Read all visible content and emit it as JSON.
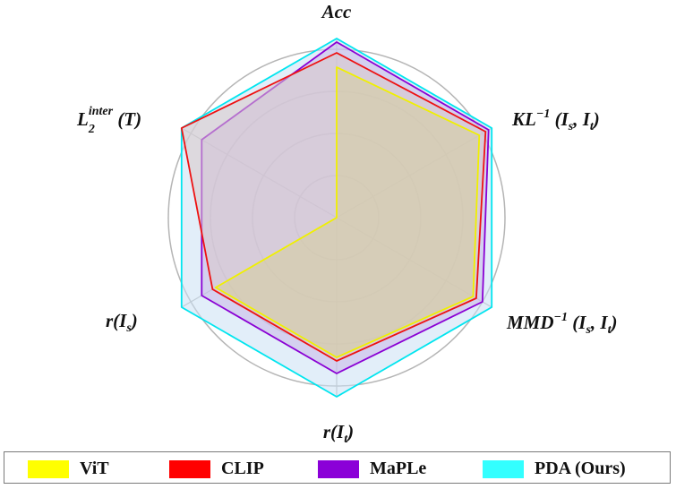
{
  "chart_data": {
    "type": "radar",
    "axes": [
      {
        "label": "Acc"
      },
      {
        "label": "KL⁻¹ (Iₛ, Iₜ)"
      },
      {
        "label": "MMD⁻¹ (Iₛ, Iₜ)"
      },
      {
        "label": "r(Iₜ)"
      },
      {
        "label": "r(Iₛ)"
      },
      {
        "label": "L₂ⁱⁿᵗᵉʳ (T)"
      }
    ],
    "rlim": [
      0,
      1
    ],
    "grid": true,
    "grid_rings": [
      0.25,
      0.5,
      0.75,
      1.0
    ],
    "legend_position": "bottom",
    "series": [
      {
        "name": "PDA (Ours)",
        "color": "#00e5ef",
        "fill": "#cbe0f4",
        "values": [
          1.0,
          1.0,
          1.0,
          1.0,
          1.0,
          1.0
        ]
      },
      {
        "name": "MaPLe",
        "color": "#8a00d4",
        "fill": "#c9b8e8",
        "values": [
          0.98,
          0.98,
          0.94,
          0.87,
          0.87,
          0.87
        ]
      },
      {
        "name": "CLIP",
        "color": "#ee1111",
        "fill": "#d9c9c9",
        "values": [
          0.92,
          0.96,
          0.9,
          0.8,
          0.8,
          1.0
        ]
      },
      {
        "name": "ViT",
        "color": "#f0f000",
        "fill": "#d6ce9c",
        "values": [
          0.84,
          0.92,
          0.88,
          0.78,
          0.78,
          0.0
        ]
      }
    ]
  },
  "legend": [
    {
      "label": "ViT",
      "color": "#ffff00"
    },
    {
      "label": "CLIP",
      "color": "#ff0000"
    },
    {
      "label": "MaPLe",
      "color": "#8b00d8"
    },
    {
      "label": "PDA (Ours)",
      "color": "#33ffff"
    }
  ]
}
